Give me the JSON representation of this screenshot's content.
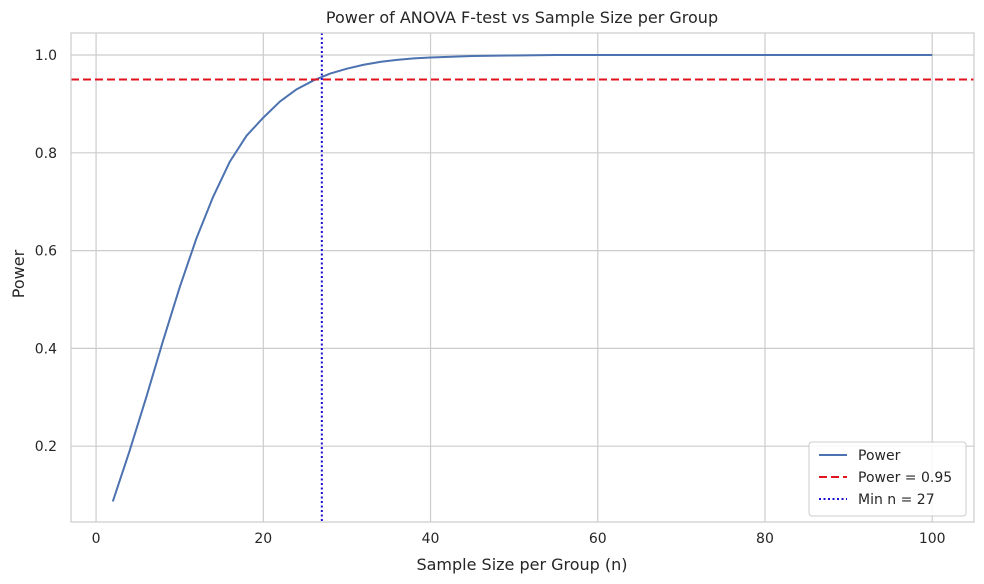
{
  "chart_data": {
    "type": "line",
    "title": "Power of ANOVA F-test vs Sample Size per Group",
    "xlabel": "Sample Size per Group (n)",
    "ylabel": "Power",
    "xlim": [
      -3,
      105
    ],
    "ylim": [
      0.045,
      1.045
    ],
    "xticks": [
      0,
      20,
      40,
      60,
      80,
      100
    ],
    "yticks": [
      0.2,
      0.4,
      0.6,
      0.8,
      1.0
    ],
    "grid": true,
    "legend_position": "bottom-right",
    "series": [
      {
        "name": "Power",
        "style": "solid",
        "color": "#4c72b0",
        "x": [
          2,
          4,
          6,
          8,
          10,
          12,
          14,
          16,
          18,
          20,
          22,
          24,
          26,
          28,
          30,
          32,
          34,
          36,
          38,
          40,
          45,
          50,
          55,
          60,
          70,
          80,
          90,
          100
        ],
        "y": [
          0.087,
          0.19,
          0.3,
          0.415,
          0.525,
          0.625,
          0.71,
          0.782,
          0.835,
          0.872,
          0.905,
          0.93,
          0.948,
          0.962,
          0.972,
          0.98,
          0.986,
          0.99,
          0.993,
          0.995,
          0.998,
          0.999,
          1.0,
          1.0,
          1.0,
          1.0,
          1.0,
          1.0
        ]
      }
    ],
    "reference_lines": [
      {
        "name": "Power = 0.95",
        "orientation": "horizontal",
        "value": 0.95,
        "style": "dashed",
        "color": "#e0141e"
      },
      {
        "name": "Min n = 27",
        "orientation": "vertical",
        "value": 27,
        "style": "dotted",
        "color": "#1a0fd0"
      }
    ]
  }
}
